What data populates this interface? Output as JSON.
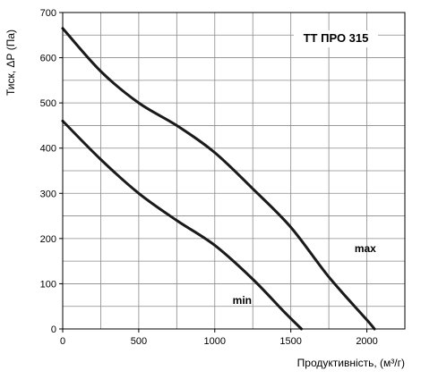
{
  "chart_data": {
    "type": "line",
    "title": "ТТ ПРО 315",
    "xlabel": "Продуктивність, (м³/г)",
    "ylabel": "Тиск, ΔР (Па)",
    "xlim": [
      0,
      2250
    ],
    "ylim": [
      0,
      700
    ],
    "x_major_ticks": [
      0,
      500,
      1000,
      1500,
      2000
    ],
    "y_major_ticks": [
      0,
      100,
      200,
      300,
      400,
      500,
      600,
      700
    ],
    "x_tick_labels": [
      "0",
      "500",
      "1000",
      "1500",
      "2000"
    ],
    "y_tick_labels": [
      "0",
      "100",
      "200",
      "300",
      "400",
      "500",
      "600",
      "700"
    ],
    "x_grid_step": 250,
    "y_grid_step": 50,
    "grid": true,
    "series": [
      {
        "name": "max",
        "x": [
          0,
          250,
          500,
          750,
          1000,
          1250,
          1500,
          1750,
          2000,
          2050
        ],
        "y": [
          665,
          570,
          500,
          450,
          390,
          310,
          225,
          115,
          20,
          0
        ]
      },
      {
        "name": "min",
        "x": [
          0,
          250,
          500,
          750,
          1000,
          1250,
          1450,
          1570
        ],
        "y": [
          460,
          375,
          300,
          240,
          185,
          110,
          40,
          0
        ]
      }
    ],
    "curve_labels": [
      {
        "text": "max",
        "x": 1990,
        "y": 170
      },
      {
        "text": "min",
        "x": 1180,
        "y": 55
      }
    ]
  }
}
